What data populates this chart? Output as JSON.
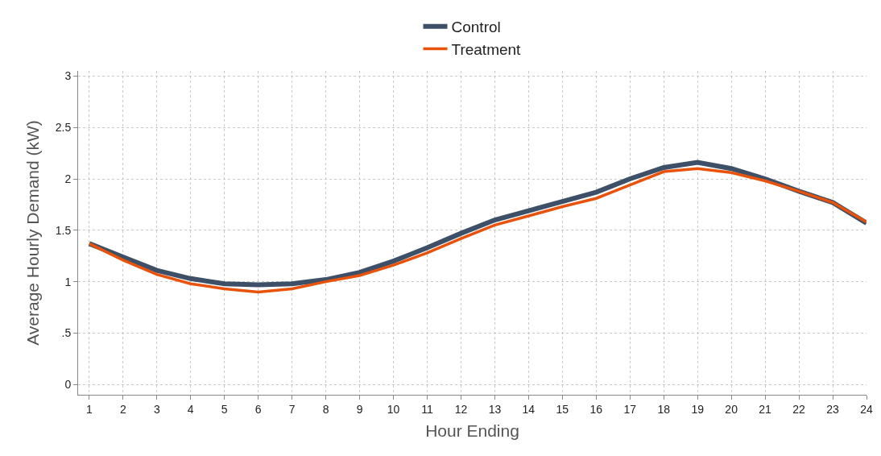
{
  "chart_data": {
    "type": "line",
    "xlabel": "Hour Ending",
    "ylabel": "Average Hourly Demand (kW)",
    "x": [
      1,
      2,
      3,
      4,
      5,
      6,
      7,
      8,
      9,
      10,
      11,
      12,
      13,
      14,
      15,
      16,
      17,
      18,
      19,
      20,
      21,
      22,
      23,
      24
    ],
    "series": [
      {
        "name": "Control",
        "color": "#3e5068",
        "values": [
          1.37,
          1.24,
          1.11,
          1.03,
          0.98,
          0.97,
          0.98,
          1.02,
          1.09,
          1.2,
          1.33,
          1.47,
          1.6,
          1.69,
          1.78,
          1.87,
          2.0,
          2.11,
          2.16,
          2.1,
          2.0,
          1.88,
          1.77,
          1.57
        ]
      },
      {
        "name": "Treatment",
        "color": "#e8520a",
        "values": [
          1.37,
          1.21,
          1.07,
          0.98,
          0.93,
          0.9,
          0.93,
          1.0,
          1.06,
          1.16,
          1.28,
          1.42,
          1.55,
          1.64,
          1.73,
          1.81,
          1.94,
          2.07,
          2.1,
          2.06,
          1.98,
          1.88,
          1.77,
          1.58
        ]
      }
    ],
    "xlim": [
      0.67,
      24
    ],
    "xticks": [
      1,
      2,
      3,
      4,
      5,
      6,
      7,
      8,
      9,
      10,
      11,
      12,
      13,
      14,
      15,
      16,
      17,
      18,
      19,
      20,
      21,
      22,
      23,
      24
    ],
    "ylim": [
      -0.1,
      3.05
    ],
    "yticks": [
      0,
      {
        "value": 0.5,
        "label": ".5"
      },
      1,
      1.5,
      2,
      2.5,
      3
    ],
    "grid": true,
    "legend": "top",
    "marker": "none",
    "line_style": "solid"
  }
}
